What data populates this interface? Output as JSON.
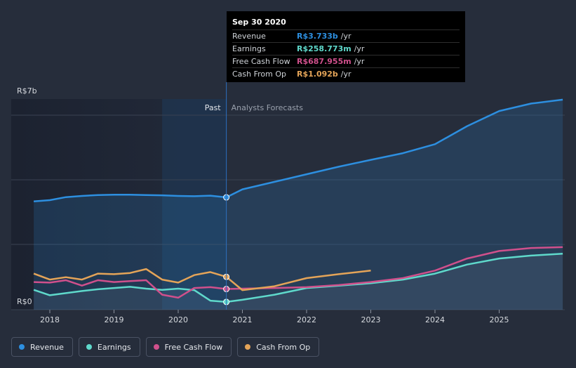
{
  "tooltip": {
    "date": "Sep 30 2020",
    "rows": [
      {
        "label": "Revenue",
        "value": "R$3.733b",
        "unit": "/yr",
        "color": "#2d8fe0"
      },
      {
        "label": "Earnings",
        "value": "R$258.773m",
        "unit": "/yr",
        "color": "#5fd9cb"
      },
      {
        "label": "Free Cash Flow",
        "value": "R$687.955m",
        "unit": "/yr",
        "color": "#d0508c"
      },
      {
        "label": "Cash From Op",
        "value": "R$1.092b",
        "unit": "/yr",
        "color": "#e4a458"
      }
    ]
  },
  "legend": {
    "items": [
      {
        "label": "Revenue",
        "color": "#2d8fe0"
      },
      {
        "label": "Earnings",
        "color": "#5fd9cb"
      },
      {
        "label": "Free Cash Flow",
        "color": "#d0508c"
      },
      {
        "label": "Cash From Op",
        "color": "#e4a458"
      }
    ]
  },
  "chart_data": {
    "type": "line",
    "title": "",
    "divider_labels": {
      "past": "Past",
      "forecast": "Analysts Forecasts"
    },
    "divider_x": 2020.75,
    "y_tick_labels": {
      "top": "R$7b",
      "bottom": "R$0"
    },
    "ylim": [
      0,
      7
    ],
    "y_unit": "R$ billions",
    "xlim": [
      2017.5,
      2026.0
    ],
    "x_ticks": [
      2018,
      2019,
      2020,
      2021,
      2022,
      2023,
      2024,
      2025
    ],
    "x_tick_labels": [
      "2018",
      "2019",
      "2020",
      "2021",
      "2022",
      "2023",
      "2024",
      "2025"
    ],
    "series": [
      {
        "name": "Revenue",
        "color": "#2d8fe0",
        "x": [
          2017.75,
          2018.0,
          2018.25,
          2018.5,
          2018.75,
          2019.0,
          2019.25,
          2019.5,
          2019.75,
          2020.0,
          2020.25,
          2020.5,
          2020.75,
          2021.0,
          2021.5,
          2022.0,
          2022.5,
          2023.0,
          2023.5,
          2024.0,
          2024.5,
          2025.0,
          2025.5,
          2025.99
        ],
        "values": [
          3.6,
          3.64,
          3.74,
          3.78,
          3.81,
          3.82,
          3.82,
          3.81,
          3.8,
          3.78,
          3.77,
          3.79,
          3.733,
          4.0,
          4.25,
          4.5,
          4.75,
          4.98,
          5.2,
          5.5,
          6.1,
          6.6,
          6.85,
          6.98
        ]
      },
      {
        "name": "Earnings",
        "color": "#5fd9cb",
        "x": [
          2017.75,
          2018.0,
          2018.25,
          2018.5,
          2018.75,
          2019.0,
          2019.25,
          2019.5,
          2019.75,
          2020.0,
          2020.25,
          2020.5,
          2020.75,
          2021.0,
          2021.5,
          2022.0,
          2022.5,
          2023.0,
          2023.5,
          2024.0,
          2024.5,
          2025.0,
          2025.5,
          2025.99
        ],
        "values": [
          0.66,
          0.48,
          0.55,
          0.62,
          0.68,
          0.72,
          0.76,
          0.7,
          0.66,
          0.7,
          0.65,
          0.3,
          0.258773,
          0.33,
          0.5,
          0.72,
          0.8,
          0.88,
          1.0,
          1.2,
          1.5,
          1.7,
          1.8,
          1.86
        ]
      },
      {
        "name": "Free Cash Flow",
        "color": "#d0508c",
        "x": [
          2017.75,
          2018.0,
          2018.25,
          2018.5,
          2018.75,
          2019.0,
          2019.25,
          2019.5,
          2019.75,
          2020.0,
          2020.25,
          2020.5,
          2020.75,
          2021.0,
          2021.5,
          2022.0,
          2022.5,
          2023.0,
          2023.5,
          2024.0,
          2024.5,
          2025.0,
          2025.5,
          2025.99
        ],
        "values": [
          0.92,
          0.9,
          0.98,
          0.8,
          0.98,
          0.92,
          0.95,
          0.98,
          0.5,
          0.4,
          0.72,
          0.75,
          0.687955,
          0.7,
          0.72,
          0.75,
          0.82,
          0.92,
          1.05,
          1.3,
          1.7,
          1.95,
          2.05,
          2.08
        ]
      },
      {
        "name": "Cash From Op",
        "color": "#e4a458",
        "x": [
          2017.75,
          2018.0,
          2018.25,
          2018.5,
          2018.75,
          2019.0,
          2019.25,
          2019.5,
          2019.75,
          2020.0,
          2020.25,
          2020.5,
          2020.75,
          2021.0,
          2021.5,
          2022.0,
          2022.5,
          2023.0
        ],
        "values": [
          1.2,
          1.0,
          1.08,
          1.0,
          1.2,
          1.18,
          1.22,
          1.35,
          1.0,
          0.9,
          1.15,
          1.25,
          1.092,
          0.65,
          0.78,
          1.05,
          1.18,
          1.3
        ]
      }
    ]
  }
}
